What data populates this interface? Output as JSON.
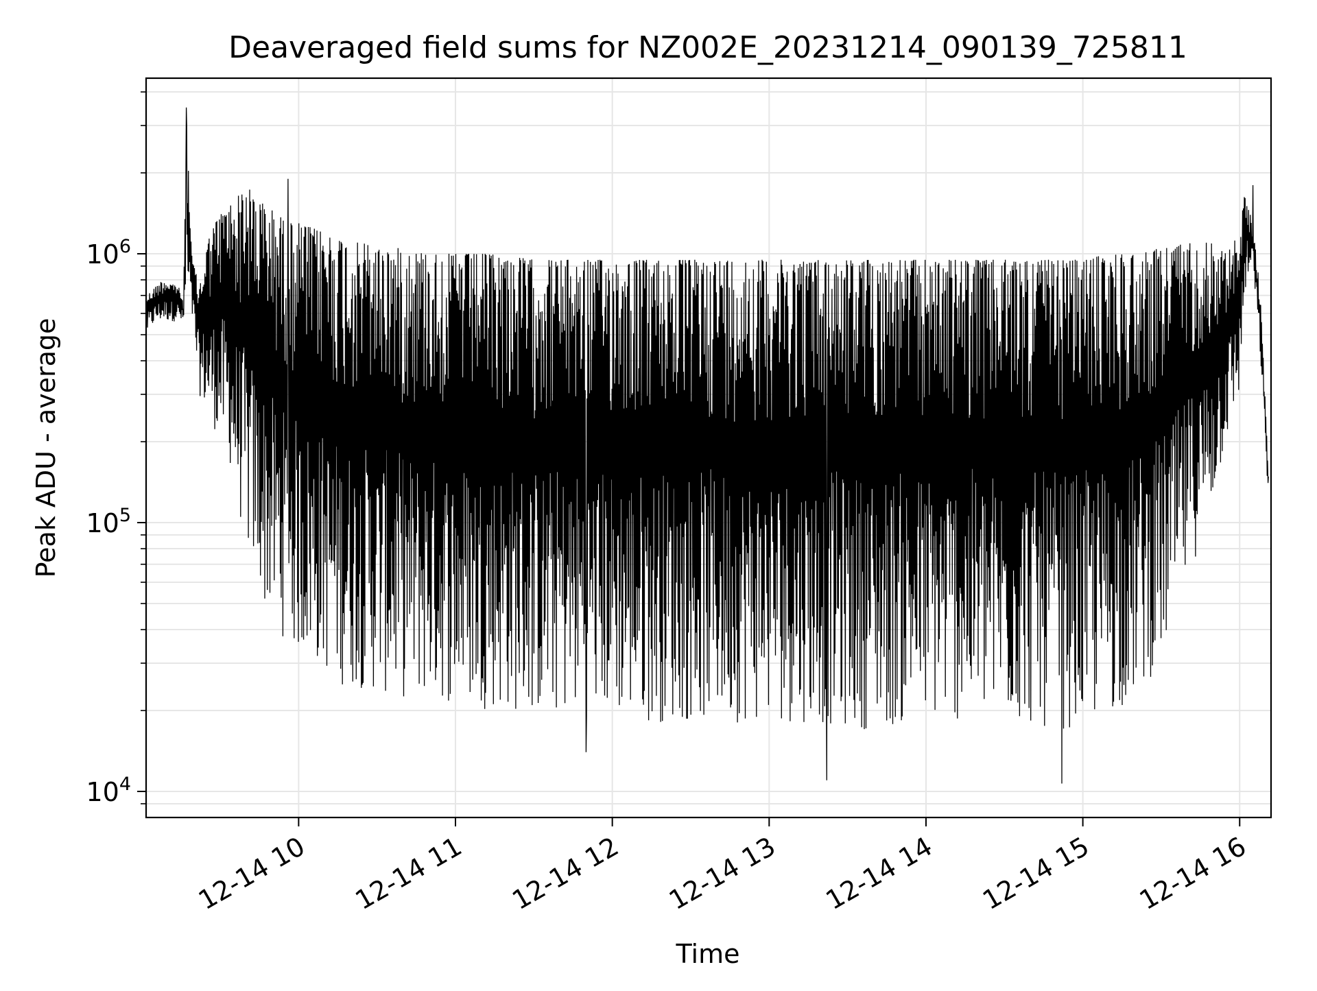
{
  "chart_data": {
    "type": "line",
    "title": "Deaveraged field sums for NZ002E_20231214_090139_725811",
    "xlabel": "Time",
    "ylabel": "Peak ADU - average",
    "yscale": "log",
    "ylim": [
      8000,
      4500000
    ],
    "xlim": [
      "2023-12-14 09:01:39",
      "2023-12-14 16:12:00"
    ],
    "grid": true,
    "x_ticks": [
      {
        "time": "2023-12-14 10:00",
        "label": "12-14 10"
      },
      {
        "time": "2023-12-14 11:00",
        "label": "12-14 11"
      },
      {
        "time": "2023-12-14 12:00",
        "label": "12-14 12"
      },
      {
        "time": "2023-12-14 13:00",
        "label": "12-14 13"
      },
      {
        "time": "2023-12-14 14:00",
        "label": "12-14 14"
      },
      {
        "time": "2023-12-14 15:00",
        "label": "12-14 15"
      },
      {
        "time": "2023-12-14 16:00",
        "label": "12-14 16"
      }
    ],
    "y_ticks": [
      {
        "value": 10000,
        "base": "10",
        "exp": "4"
      },
      {
        "value": 100000,
        "base": "10",
        "exp": "5"
      },
      {
        "value": 1000000,
        "base": "10",
        "exp": "6"
      }
    ],
    "line_color": "#000000",
    "series": [
      {
        "x": [
          "2023-12-14 09:02",
          "2023-12-14 09:05",
          "2023-12-14 09:08",
          "2023-12-14 09:11",
          "2023-12-14 09:14",
          "2023-12-14 09:16",
          "2023-12-14 09:17",
          "2023-12-14 09:19",
          "2023-12-14 09:22",
          "2023-12-14 09:25",
          "2023-12-14 09:28",
          "2023-12-14 09:30",
          "2023-12-14 09:33",
          "2023-12-14 09:36",
          "2023-12-14 09:40",
          "2023-12-14 09:44",
          "2023-12-14 09:48",
          "2023-12-14 09:52",
          "2023-12-14 09:56",
          "2023-12-14 10:00",
          "2023-12-14 10:05",
          "2023-12-14 10:10",
          "2023-12-14 10:15",
          "2023-12-14 10:20",
          "2023-12-14 10:25",
          "2023-12-14 10:30",
          "2023-12-14 10:40",
          "2023-12-14 10:50",
          "2023-12-14 11:00",
          "2023-12-14 11:15",
          "2023-12-14 11:30",
          "2023-12-14 11:45",
          "2023-12-14 12:00",
          "2023-12-14 12:15",
          "2023-12-14 12:30",
          "2023-12-14 12:45",
          "2023-12-14 13:00",
          "2023-12-14 13:15",
          "2023-12-14 13:30",
          "2023-12-14 13:45",
          "2023-12-14 14:00",
          "2023-12-14 14:15",
          "2023-12-14 14:30",
          "2023-12-14 14:45",
          "2023-12-14 15:00",
          "2023-12-14 15:10",
          "2023-12-14 15:20",
          "2023-12-14 15:30",
          "2023-12-14 15:40",
          "2023-12-14 15:50",
          "2023-12-14 15:55",
          "2023-12-14 16:00",
          "2023-12-14 16:02",
          "2023-12-14 16:05",
          "2023-12-14 16:08",
          "2023-12-14 16:11"
        ],
        "y_upper": [
          700000,
          750000,
          800000,
          780000,
          760000,
          650000,
          3500000,
          1000000,
          750000,
          1100000,
          1300000,
          1400000,
          1500000,
          1600000,
          1800000,
          1600000,
          1500000,
          1400000,
          1300000,
          1300000,
          1250000,
          1200000,
          1150000,
          1100000,
          1100000,
          1050000,
          1050000,
          1000000,
          1000000,
          1000000,
          950000,
          950000,
          950000,
          950000,
          950000,
          950000,
          950000,
          950000,
          950000,
          950000,
          950000,
          950000,
          950000,
          950000,
          950000,
          1000000,
          1000000,
          1050000,
          1100000,
          1100000,
          1000000,
          1200000,
          1700000,
          1300000,
          700000,
          150000
        ],
        "y_lower": [
          500000,
          550000,
          560000,
          560000,
          560000,
          550000,
          600000,
          600000,
          300000,
          250000,
          220000,
          200000,
          180000,
          120000,
          80000,
          60000,
          45000,
          40000,
          35000,
          32000,
          30000,
          28000,
          25000,
          24000,
          24000,
          23000,
          22000,
          22000,
          21000,
          20000,
          19000,
          19000,
          19000,
          18000,
          18000,
          18000,
          18000,
          18000,
          17000,
          17000,
          18000,
          18000,
          18000,
          17000,
          17000,
          19000,
          22000,
          30000,
          60000,
          120000,
          200000,
          300000,
          700000,
          900000,
          400000,
          120000
        ],
        "spikes": [
          {
            "x": "2023-12-14 09:17",
            "y": 3500000
          },
          {
            "x": "2023-12-14 09:56",
            "y": 1900000
          },
          {
            "x": "2023-12-14 11:50",
            "y": 14000
          },
          {
            "x": "2023-12-14 13:22",
            "y": 11000
          },
          {
            "x": "2023-12-14 14:52",
            "y": 10700
          },
          {
            "x": "2023-12-14 16:05",
            "y": 1800000
          }
        ]
      }
    ]
  }
}
